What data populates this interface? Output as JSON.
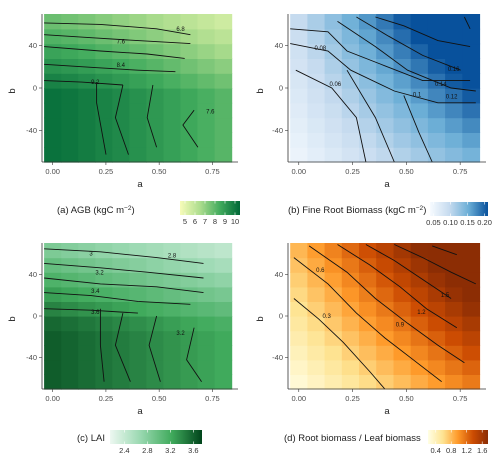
{
  "chart_data": [
    {
      "type": "heatmap",
      "caption": "(a) AGB (kgC m",
      "caption_sup": "−2",
      "caption_end": ")",
      "xlabel": "a",
      "ylabel": "b",
      "xlim": [
        -0.05,
        0.87
      ],
      "ylim": [
        -70,
        70
      ],
      "x_ticks": [
        "0.00",
        "0.25",
        "0.50",
        "0.75"
      ],
      "y_ticks": [
        "40",
        "0",
        "-40"
      ],
      "colors": [
        "#f7fcb9",
        "#addd8e",
        "#41ab5d",
        "#006837"
      ],
      "legend_ticks": [
        "5",
        "6",
        "7",
        "8",
        "9",
        "10"
      ],
      "legend_min": 4.5,
      "legend_max": 10.5,
      "contour_labels": [
        {
          "text": "6.8",
          "x": 0.6,
          "y": 54
        },
        {
          "text": "7.6",
          "x": 0.32,
          "y": 42
        },
        {
          "text": "8.4",
          "x": 0.32,
          "y": 20
        },
        {
          "text": "9.2",
          "x": 0.2,
          "y": 4
        },
        {
          "text": "7.6",
          "x": 0.74,
          "y": -24
        }
      ]
    },
    {
      "type": "heatmap",
      "caption": "(b) Fine Root Biomass (kgC m",
      "caption_sup": "−2",
      "caption_end": ")",
      "xlabel": "a",
      "ylabel": "b",
      "xlim": [
        -0.05,
        0.87
      ],
      "ylim": [
        -70,
        70
      ],
      "x_ticks": [
        "0.00",
        "0.25",
        "0.50",
        "0.75"
      ],
      "y_ticks": [
        "40",
        "0",
        "-40"
      ],
      "colors": [
        "#f7fbff",
        "#c6dbef",
        "#6baed6",
        "#08519c"
      ],
      "legend_ticks": [
        "0.05",
        "0.10",
        "0.15",
        "0.20"
      ],
      "legend_min": 0.04,
      "legend_max": 0.21,
      "contour_labels": [
        {
          "text": "0.08",
          "x": 0.1,
          "y": 36
        },
        {
          "text": "0.06",
          "x": 0.17,
          "y": 2
        },
        {
          "text": "0.1",
          "x": 0.55,
          "y": -8
        },
        {
          "text": "0.12",
          "x": 0.71,
          "y": -10
        },
        {
          "text": "0.14",
          "x": 0.66,
          "y": 2
        },
        {
          "text": "0.16",
          "x": 0.72,
          "y": 16
        }
      ]
    },
    {
      "type": "heatmap",
      "caption": "(c) LAI",
      "caption_sup": "",
      "caption_end": "",
      "xlabel": "a",
      "ylabel": "b",
      "xlim": [
        -0.05,
        0.87
      ],
      "ylim": [
        -70,
        70
      ],
      "x_ticks": [
        "0.00",
        "0.25",
        "0.50",
        "0.75"
      ],
      "y_ticks": [
        "40",
        "0",
        "-40"
      ],
      "colors": [
        "#edf8f1",
        "#99d8b0",
        "#41ab5d",
        "#00441b"
      ],
      "legend_ticks": [
        "2.4",
        "2.8",
        "3.2",
        "3.6"
      ],
      "legend_min": 2.15,
      "legend_max": 3.75,
      "contour_labels": [
        {
          "text": "3",
          "x": 0.18,
          "y": 58
        },
        {
          "text": "2.8",
          "x": 0.56,
          "y": 56
        },
        {
          "text": "3.2",
          "x": 0.22,
          "y": 40
        },
        {
          "text": "3.4",
          "x": 0.2,
          "y": 22
        },
        {
          "text": "3.6",
          "x": 0.2,
          "y": 2
        },
        {
          "text": "3.2",
          "x": 0.6,
          "y": -18
        }
      ]
    },
    {
      "type": "heatmap",
      "caption": "(d) Root biomass / Leaf biomass",
      "caption_sup": "",
      "caption_end": "",
      "xlabel": "a",
      "ylabel": "b",
      "xlim": [
        -0.05,
        0.87
      ],
      "ylim": [
        -70,
        70
      ],
      "x_ticks": [
        "0.00",
        "0.25",
        "0.50",
        "0.75"
      ],
      "y_ticks": [
        "40",
        "0",
        "-40"
      ],
      "colors": [
        "#ffffe5",
        "#fee391",
        "#fe9929",
        "#cc4c02",
        "#8c2d04"
      ],
      "legend_ticks": [
        "0.4",
        "0.8",
        "1.2",
        "1.6"
      ],
      "legend_min": 0.2,
      "legend_max": 1.75,
      "contour_labels": [
        {
          "text": "0.6",
          "x": 0.1,
          "y": 42
        },
        {
          "text": "0.3",
          "x": 0.13,
          "y": -2
        },
        {
          "text": "0.9",
          "x": 0.47,
          "y": -10
        },
        {
          "text": "1.2",
          "x": 0.57,
          "y": 2
        },
        {
          "text": "1.5",
          "x": 0.68,
          "y": 18
        }
      ]
    }
  ]
}
